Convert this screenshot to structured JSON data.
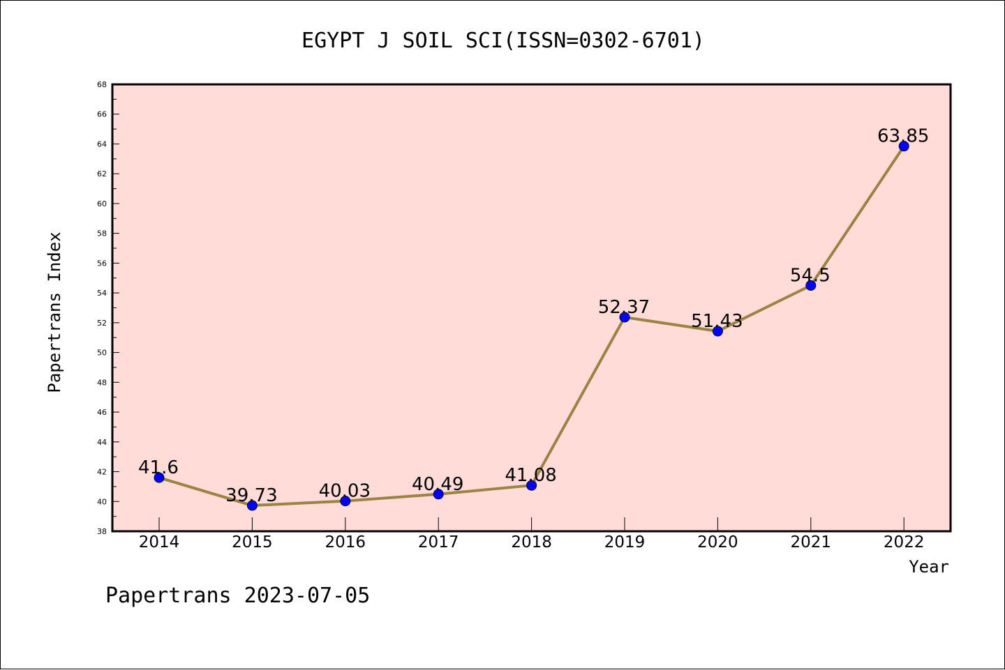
{
  "chart_data": {
    "type": "line",
    "title": "EGYPT J SOIL SCI(ISSN=0302-6701)",
    "xlabel": "Year",
    "ylabel": "Papertrans Index",
    "categories": [
      "2014",
      "2015",
      "2016",
      "2017",
      "2018",
      "2019",
      "2020",
      "2021",
      "2022"
    ],
    "values": [
      41.6,
      39.73,
      40.03,
      40.49,
      41.08,
      52.37,
      51.43,
      54.5,
      63.85
    ],
    "data_labels": [
      "41.6",
      "39.73",
      "40.03",
      "40.49",
      "41.08",
      "52.37",
      "51.43",
      "54.5",
      "63.85"
    ],
    "ylim": [
      38,
      68
    ],
    "yticks": [
      38,
      40,
      42,
      44,
      46,
      48,
      50,
      52,
      54,
      56,
      58,
      60,
      62,
      64,
      66,
      68
    ],
    "grid": false,
    "colors": {
      "plot_background": "#ffdcd8",
      "line": "#9b8443",
      "marker": "#0000ff"
    },
    "footer": "Papertrans 2023-07-05"
  }
}
